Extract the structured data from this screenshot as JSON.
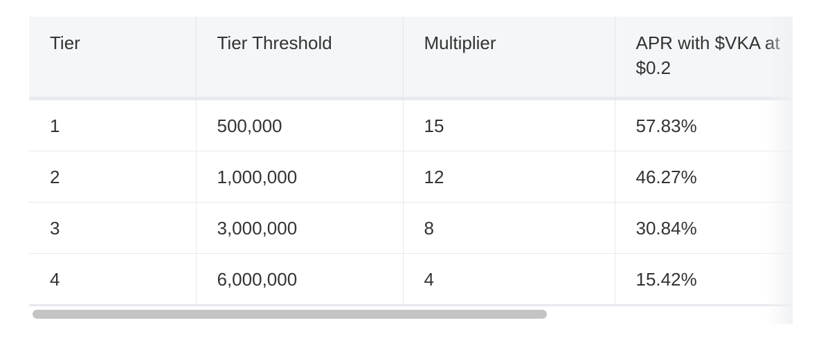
{
  "table": {
    "headers": [
      "Tier",
      "Tier Threshold",
      "Multiplier",
      "APR with $VKA at $0.2"
    ],
    "rows": [
      [
        "1",
        "500,000",
        "15",
        "57.83%"
      ],
      [
        "2",
        "1,000,000",
        "12",
        "46.27%"
      ],
      [
        "3",
        "3,000,000",
        "8",
        "30.84%"
      ],
      [
        "4",
        "6,000,000",
        "4",
        "15.42%"
      ]
    ]
  }
}
